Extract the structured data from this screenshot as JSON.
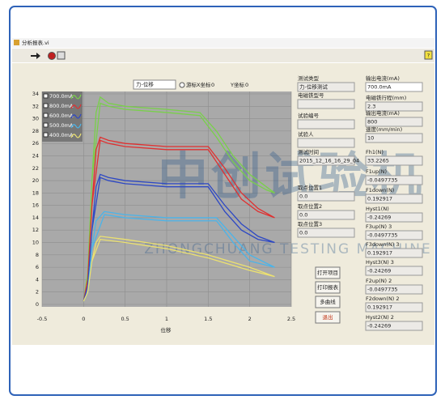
{
  "window": {
    "title": "分析报表.vi"
  },
  "controls": {
    "plot_select": "力-位移",
    "cursor": "游标",
    "x_coord_label": "X坐标",
    "x_coord": "0",
    "y_coord_label": "Y坐标",
    "y_coord": "0"
  },
  "chart_data": {
    "type": "line",
    "x_label": "位移",
    "xlim": [
      -0.5,
      2.5
    ],
    "xticks": [
      -0.5,
      0,
      0.5,
      1,
      1.5,
      2,
      2.5
    ],
    "ylim": [
      0,
      34
    ],
    "yticks": [
      0,
      2,
      4,
      6,
      8,
      10,
      12,
      14,
      16,
      18,
      20,
      22,
      24,
      26,
      28,
      30,
      32,
      34
    ],
    "grid": true,
    "series": [
      {
        "name": "700.0mA",
        "color": "#79d04a",
        "x": [
          0,
          0.05,
          0.1,
          0.15,
          0.2,
          0.3,
          0.5,
          1.0,
          1.4,
          1.6,
          1.8,
          2.0,
          2.2,
          2.3,
          2.2,
          2.0,
          1.8,
          1.6,
          1.4,
          1.0,
          0.5,
          0.3,
          0.2,
          0.1,
          0.05,
          0
        ],
        "values": [
          0.5,
          5,
          20,
          31,
          33.5,
          32.5,
          32,
          31.5,
          31,
          28,
          24,
          21,
          19,
          18,
          18.5,
          20,
          23,
          27,
          30.5,
          31,
          31.5,
          32,
          32.5,
          20,
          5,
          0.5
        ]
      },
      {
        "name": "800.0mA",
        "color": "#e03030",
        "x": [
          0,
          0.05,
          0.1,
          0.15,
          0.2,
          0.3,
          0.5,
          1.0,
          1.5,
          1.7,
          1.9,
          2.1,
          2.3,
          2.1,
          1.9,
          1.7,
          1.5,
          1.0,
          0.5,
          0.3,
          0.2,
          0.1,
          0.05,
          0
        ],
        "values": [
          0.5,
          4,
          16,
          25,
          27,
          26.5,
          26,
          25.5,
          25.5,
          22,
          18,
          15.5,
          14,
          15,
          17,
          21,
          25,
          25,
          25.5,
          26,
          26.5,
          16,
          4,
          0.5
        ]
      },
      {
        "name": "600.0mA",
        "color": "#2d48c4",
        "x": [
          0,
          0.05,
          0.1,
          0.15,
          0.2,
          0.3,
          0.5,
          1.0,
          1.5,
          1.7,
          1.9,
          2.1,
          2.3,
          2.1,
          1.9,
          1.7,
          1.5,
          1.0,
          0.5,
          0.3,
          0.2,
          0.1,
          0.05,
          0
        ],
        "values": [
          0.5,
          3,
          12,
          19,
          21,
          20.5,
          20,
          19.5,
          19.5,
          16,
          13,
          11,
          10,
          10.5,
          12,
          15,
          19,
          19,
          19.5,
          20,
          20.5,
          12,
          3,
          0.5
        ]
      },
      {
        "name": "500.0mA",
        "color": "#4ab4ea",
        "x": [
          0,
          0.05,
          0.1,
          0.15,
          0.25,
          0.5,
          1.0,
          1.6,
          1.8,
          2.0,
          2.3,
          2.0,
          1.8,
          1.6,
          1.0,
          0.5,
          0.25,
          0.1,
          0.05,
          0
        ],
        "values": [
          0.5,
          2,
          9,
          13.5,
          15,
          14.5,
          14,
          14,
          11,
          8,
          6,
          7,
          10,
          13.5,
          13.5,
          14,
          14.5,
          9,
          2,
          0.5
        ]
      },
      {
        "name": "400.0mA",
        "color": "#ece170",
        "x": [
          0,
          0.05,
          0.1,
          0.15,
          0.2,
          0.5,
          1.0,
          1.5,
          2.0,
          2.3,
          2.0,
          1.5,
          1.0,
          0.5,
          0.2,
          0.1,
          0.05,
          0
        ],
        "values": [
          0.5,
          2,
          7,
          10,
          11,
          10.5,
          9.5,
          8,
          6,
          4.5,
          5.5,
          7.5,
          9,
          10,
          10.5,
          7,
          2,
          0.5
        ]
      }
    ]
  },
  "left_fields": [
    {
      "label": "测试类型",
      "value": "力-位移测试"
    },
    {
      "label": "电磁铁型号"
    },
    {
      "label": "试验编号"
    },
    {
      "label": "试验人"
    },
    {
      "label": "测试时间",
      "value": "2015_12_16_16_29_04"
    },
    {
      "label": "取点位置1",
      "value": "0.0"
    },
    {
      "label": "取点位置2",
      "value": "0.0"
    },
    {
      "label": "取点位置3",
      "value": "0.0"
    }
  ],
  "buttons": [
    "打开项目",
    "打印报表",
    "多曲线",
    "退出"
  ],
  "right_fields": [
    {
      "label": "输出电流(mA)",
      "value": "700.0mA"
    },
    {
      "label": "电磁铁行程(mm)",
      "value": "2.3"
    },
    {
      "label": "输出电流(mA)",
      "value": "800"
    },
    {
      "label": "速度(mm/min)",
      "value": "10"
    },
    {
      "label": "Fh1(N)",
      "value": "33.2265"
    },
    {
      "label": "F1up(N)",
      "value": "-0.0497735"
    },
    {
      "label": "F1down(N)",
      "value": "0.192917"
    },
    {
      "label": "Hyst1(N)",
      "value": "-0.24269"
    },
    {
      "label": "F3up(N) 3",
      "value": "-0.0497735"
    },
    {
      "label": "F3down(N) 3",
      "value": "0.192917"
    },
    {
      "label": "Hyst3(N) 3",
      "value": "-0.24269"
    },
    {
      "label": "F2up(N) 2",
      "value": "-0.0497735"
    },
    {
      "label": "F2down(N) 2",
      "value": "0.192917"
    },
    {
      "label": "Hyst2(N) 2",
      "value": "-0.24269"
    }
  ],
  "watermark": {
    "cn": "中创试验机",
    "en": "ZHONGCHUANG TESTING MACHINE"
  }
}
